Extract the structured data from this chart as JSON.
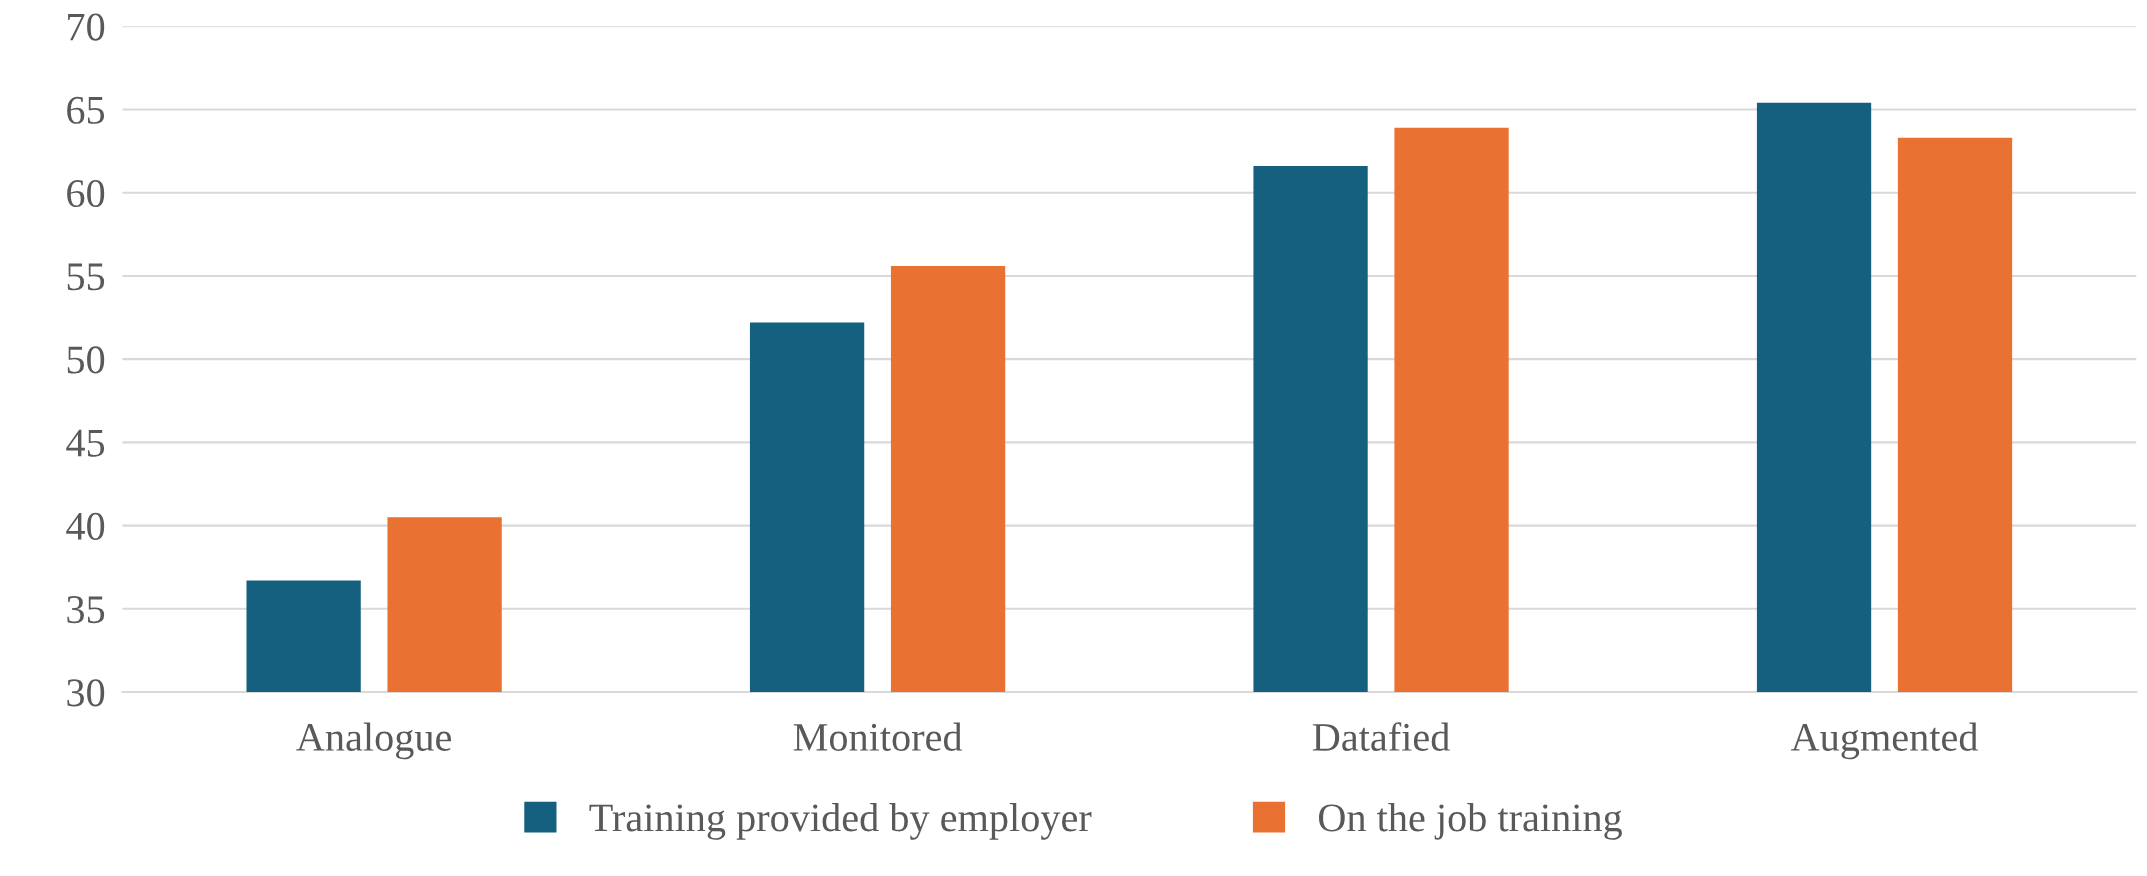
{
  "chart_data": {
    "type": "bar",
    "categories": [
      "Analogue",
      "Monitored",
      "Datafied",
      "Augmented"
    ],
    "series": [
      {
        "name": "Training provided by employer",
        "color": "#16607f",
        "values": [
          36.7,
          52.2,
          61.6,
          65.4
        ]
      },
      {
        "name": "On the job training",
        "color": "#e97132",
        "values": [
          40.5,
          55.6,
          63.9,
          63.3
        ]
      }
    ],
    "ylim": [
      30,
      70
    ],
    "yticks": [
      30,
      35,
      40,
      45,
      50,
      55,
      60,
      65,
      70
    ],
    "grid": "y",
    "legend": "bottom"
  }
}
